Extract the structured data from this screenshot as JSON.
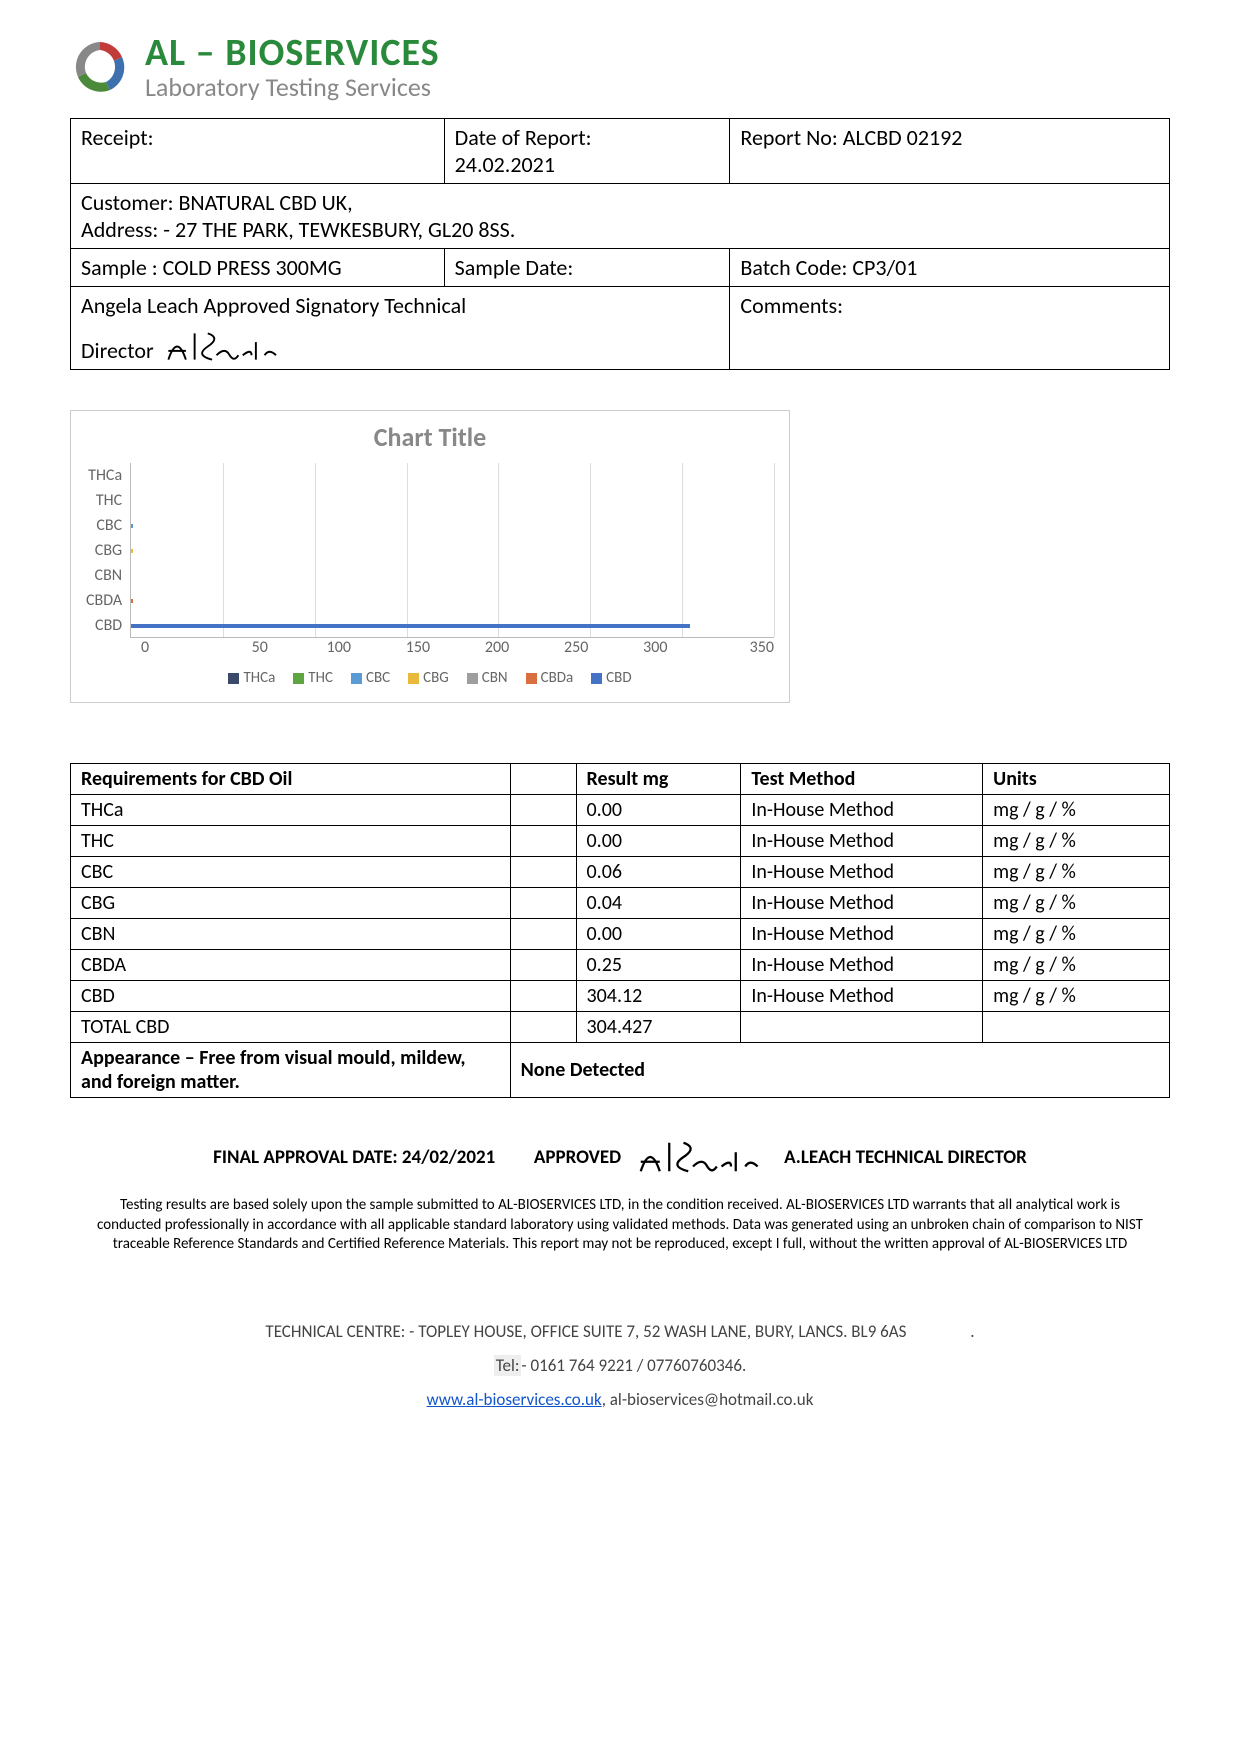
{
  "company": {
    "name": "AL – BIOSERVICES",
    "name_color": "#2a8a3c",
    "subtitle": "Laboratory Testing Services",
    "subtitle_color": "#888888"
  },
  "info": {
    "receipt_label": "Receipt:",
    "date_label": "Date of Report:",
    "date_value": "24.02.2021",
    "report_label": "Report No: ALCBD 02192",
    "customer_line1": "Customer:  BNATURAL CBD UK,",
    "customer_line2": "Address: -   27 THE PARK, TEWKESBURY, GL20 8SS.",
    "sample_label": "Sample : COLD PRESS 300MG",
    "sample_date_label": "Sample Date:",
    "batch_label": "Batch Code:  CP3/01",
    "signatory_line": "Angela Leach Approved Signatory Technical",
    "signatory_role": "Director",
    "comments_label": "Comments:"
  },
  "chart": {
    "type": "bar-horizontal",
    "title": "Chart Title",
    "title_color": "#888888",
    "title_fontsize": 26,
    "categories": [
      "THCa",
      "THC",
      "CBC",
      "CBG",
      "CBN",
      "CBDA",
      "CBD"
    ],
    "values": [
      0.0,
      0.0,
      0.06,
      0.04,
      0.0,
      0.25,
      304.12
    ],
    "colors": [
      "#3b4a6b",
      "#5fa641",
      "#5a9bd5",
      "#e8b93a",
      "#9e9e9e",
      "#d96f3e",
      "#4472c4"
    ],
    "xlim": [
      0,
      350
    ],
    "xtick_step": 50,
    "xticks": [
      "0",
      "50",
      "100",
      "150",
      "200",
      "250",
      "300",
      "350"
    ],
    "grid_color": "#dddddd",
    "axis_color": "#bbbbbb",
    "label_color": "#666666",
    "label_fontsize": 16,
    "background_color": "#ffffff",
    "legend": [
      "THCa",
      "THC",
      "CBC",
      "CBG",
      "CBN",
      "CBDa",
      "CBD"
    ]
  },
  "results": {
    "headers": [
      "Requirements for CBD Oil",
      "",
      "Result mg",
      "Test Method",
      "Units"
    ],
    "rows": [
      [
        "THCa",
        "",
        "0.00",
        "In-House Method",
        "mg / g / %"
      ],
      [
        "THC",
        "",
        "0.00",
        "In-House Method",
        "mg / g / %"
      ],
      [
        "CBC",
        "",
        "0.06",
        "In-House Method",
        "mg / g / %"
      ],
      [
        "CBG",
        "",
        "0.04",
        "In-House Method",
        "mg / g / %"
      ],
      [
        "CBN",
        "",
        "0.00",
        "In-House Method",
        "mg / g / %"
      ],
      [
        "CBDA",
        "",
        "0.25",
        "In-House Method",
        "mg / g / %"
      ],
      [
        "CBD",
        "",
        "304.12",
        "In-House Method",
        "mg / g / %"
      ],
      [
        "TOTAL CBD",
        "",
        "304.427",
        "",
        ""
      ]
    ],
    "appearance_label": "Appearance – Free from visual mould, mildew, and foreign matter.",
    "appearance_result": "None Detected",
    "col_widths": [
      "40%",
      "6%",
      "15%",
      "22%",
      "17%"
    ]
  },
  "approval": {
    "date_text": "FINAL APPROVAL DATE: 24/02/2021",
    "approved_text": "APPROVED",
    "signer": "A.LEACH TECHNICAL DIRECTOR"
  },
  "disclaimer": "Testing results are based solely upon the sample submitted to AL-BIOSERVICES LTD, in the condition received. AL-BIOSERVICES LTD warrants that all analytical work is conducted professionally in accordance with all applicable standard laboratory using validated methods. Data was generated using an unbroken chain of comparison to NIST traceable Reference Standards and Certified Reference Materials. This report may not be reproduced, except I full, without the written approval of AL-BIOSERVICES LTD",
  "footer": {
    "address": "TECHNICAL CENTRE: - TOPLEY HOUSE, OFFICE SUITE 7, 52 WASH LANE, BURY, LANCS. BL9 6AS",
    "tel_label": "Tel:",
    "tel": "- 0161 764 9221 / 07760760346.",
    "web": "www.al-bioservices.co.uk",
    "email": ",  al-bioservices@hotmail.co.uk"
  }
}
